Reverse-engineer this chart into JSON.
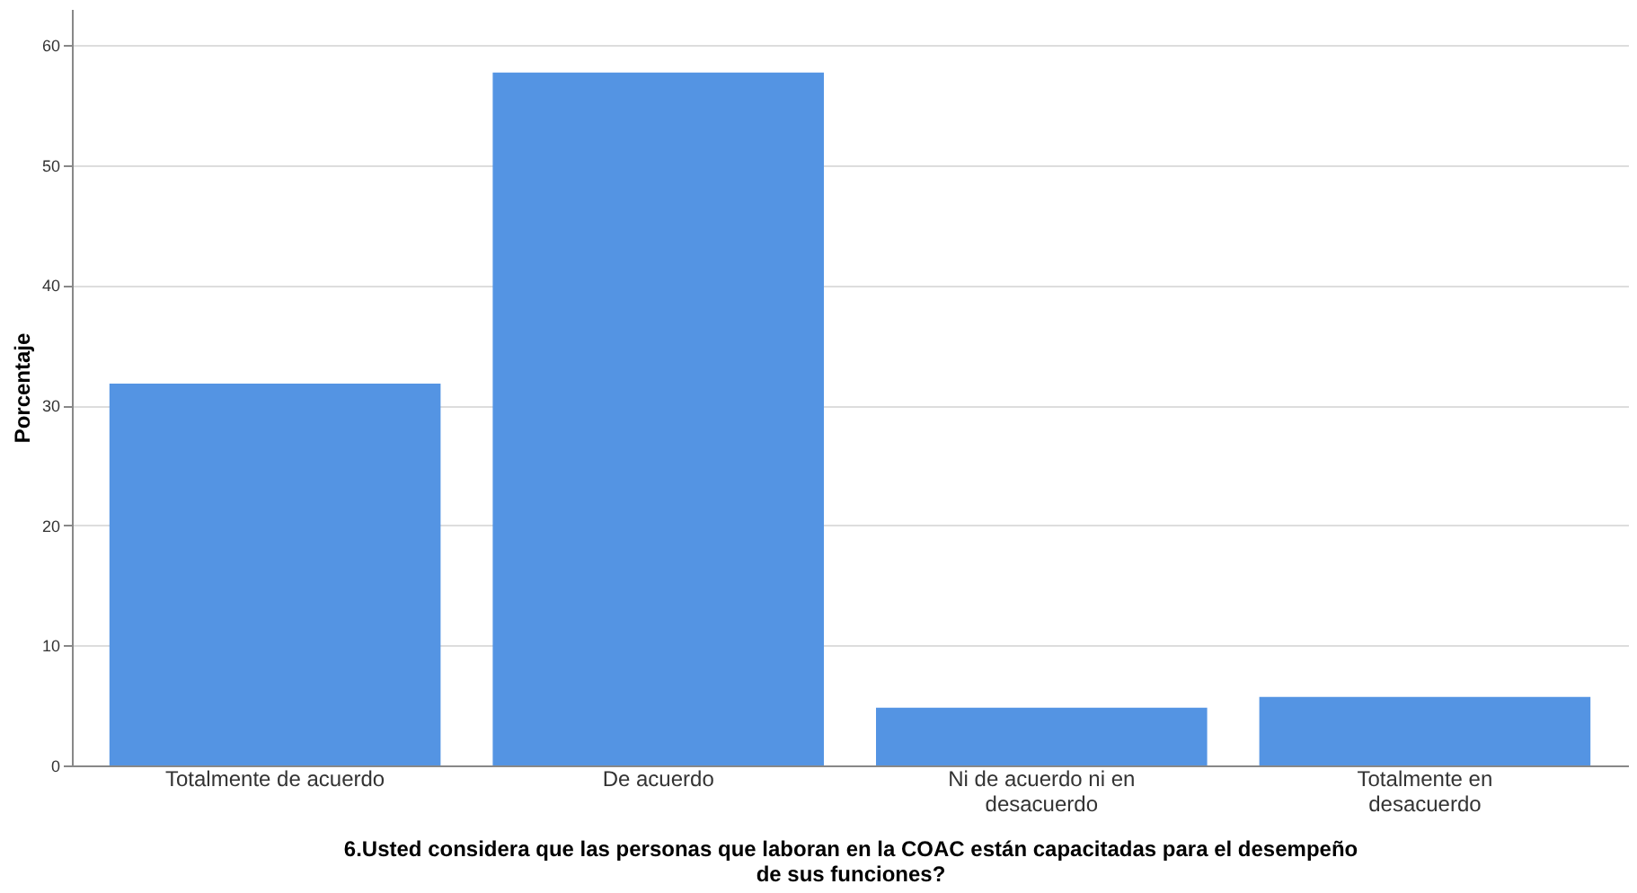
{
  "chart_data": {
    "type": "bar",
    "categories": [
      "Totalmente de acuerdo",
      "De acuerdo",
      "Ni de acuerdo ni en desacuerdo",
      "Totalmente en desacuerdo"
    ],
    "values": [
      31.8,
      57.7,
      4.8,
      5.7
    ],
    "color": "#5494e3",
    "xlabel": "6.Usted considera que las personas que laboran en la COAC están capacitadas para el desempeño de sus funciones?",
    "ylabel": "Porcentaje",
    "ylim": [
      0,
      63
    ],
    "yticks": [
      0,
      10,
      20,
      30,
      40,
      50,
      60
    ],
    "grid": "y"
  }
}
